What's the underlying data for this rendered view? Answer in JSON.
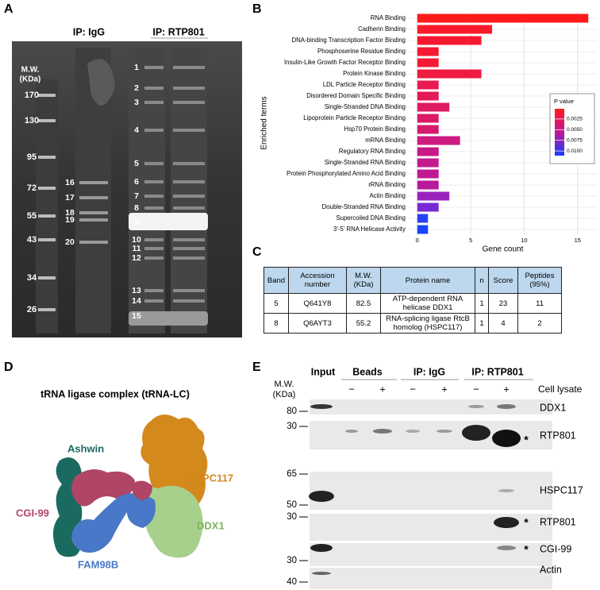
{
  "panel_labels": [
    "A",
    "B",
    "C",
    "D",
    "E"
  ],
  "panel_a": {
    "lanes": [
      "IP: IgG",
      "IP: RTP801"
    ],
    "mw_title": [
      "M.W.",
      "(KDa)"
    ],
    "mw": [
      "170",
      "130",
      "95",
      "72",
      "55",
      "43",
      "34",
      "26"
    ],
    "bands_rtp801": [
      "1",
      "2",
      "3",
      "4",
      "5",
      "6",
      "7",
      "8",
      "9",
      "10",
      "11",
      "12",
      "13",
      "14",
      "15"
    ],
    "bands_igg": [
      "16",
      "17",
      "18",
      "19",
      "20"
    ]
  },
  "chart_data": {
    "type": "bar",
    "orientation": "horizontal",
    "xlabel": "Gene count",
    "ylabel": "Enriched terms",
    "categories": [
      "RNA Binding",
      "Cadherin Binding",
      "DNA-binding Transcription Factor Binding",
      "Phosphoserine Residue Binding",
      "Insulin-Like Growth Factor Receptor Binding",
      "Protein Kinase Binding",
      "LDL Particle Receptor Binding",
      "Disordered Domain Specific Binding",
      "Single-Stranded DNA Binding",
      "Lipoprotein Particle Receptor Binding",
      "Hsp70 Protein Binding",
      "mRNA Binding",
      "Regulatory RNA Binding",
      "Single-Stranded RNA Binding",
      "Protein Phosphorylated Amino Acid Binding",
      "rRNA Binding",
      "Actin Binding",
      "Double-Stranded RNA Binding",
      "Supercoiled DNA Binding",
      "3'-5' RNA Helicase Activity"
    ],
    "values": [
      16,
      7,
      6,
      2,
      2,
      6,
      2,
      2,
      3,
      2,
      2,
      4,
      2,
      2,
      2,
      2,
      3,
      2,
      1,
      1
    ],
    "colors": [
      "#ff1a1a",
      "#fa1a2a",
      "#f51a30",
      "#f51a32",
      "#f31a35",
      "#ee1a40",
      "#e81a52",
      "#e41a58",
      "#de1a62",
      "#da1a68",
      "#d61a6e",
      "#cc1a80",
      "#c81a86",
      "#c41a8c",
      "#c01a92",
      "#b81a9c",
      "#9a22bc",
      "#7a28d4",
      "#2a40f6",
      "#1a44ff"
    ],
    "xlim": [
      -0.8,
      16.8
    ],
    "xticks": [
      0,
      5,
      10,
      15
    ],
    "grid": true,
    "colorbar": {
      "title": "P value",
      "lim": [
        0.0001,
        0.0111
      ],
      "colors": [
        "#ff1a1a",
        "#c0169a",
        "#1a3cff"
      ],
      "ticks": [
        0.0025,
        {
          "value": 0.005,
          "label": "0.0050"
        },
        0.0075,
        {
          "value": 0.01,
          "label": "0.0100"
        }
      ]
    }
  },
  "panel_c": {
    "header": [
      "Band",
      "Accession number",
      "M.W. (KDa)",
      "Protein name",
      "n",
      "Score",
      "Peptides (95%)"
    ],
    "rows": [
      [
        "5",
        "Q641Y8",
        "82.5",
        "ATP-dependent RNA helicase DDX1",
        "1",
        "23",
        "11"
      ],
      [
        "8",
        "Q6AYT3",
        "55.2",
        "RNA-splicing ligase RtcB homolog (HSPC117)",
        "1",
        "4",
        "2"
      ]
    ]
  },
  "panel_d": {
    "title": "tRNA ligase complex (tRNA-LC)",
    "proteins": [
      "Ashwin",
      "CGI-99",
      "HSPC117",
      "DDX1",
      "FAM98B"
    ]
  },
  "panel_e": {
    "groups": [
      "Input",
      "Beads",
      "IP: IgG",
      "IP: RTP801"
    ],
    "mw_title": [
      "M.W.",
      "(KDa)"
    ],
    "lysate": [
      "−",
      "+",
      "−",
      "+",
      "−",
      "+"
    ],
    "lysate_label": "Cell lysate",
    "mw": [
      "80",
      "30",
      "65",
      "50",
      "30",
      "30",
      "40"
    ],
    "targets": [
      "DDX1",
      "RTP801",
      "HSPC117",
      "RTP801",
      "CGI-99",
      "Actin"
    ],
    "asterisks": [
      "*",
      "*",
      "*"
    ]
  }
}
